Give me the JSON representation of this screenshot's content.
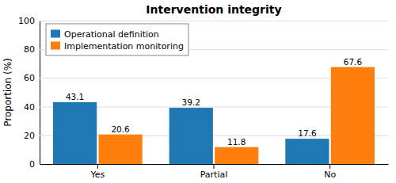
{
  "chart_data": {
    "type": "bar",
    "title": "Intervention integrity",
    "categories": [
      "Yes",
      "Partial",
      "No"
    ],
    "series": [
      {
        "name": "Operational definition",
        "values": [
          43.1,
          39.2,
          17.6
        ]
      },
      {
        "name": "Implementation monitoring",
        "values": [
          20.6,
          11.8,
          67.6
        ]
      }
    ],
    "ylabel": "Proportion (%)",
    "ylim": [
      0,
      100
    ],
    "yticks": [
      0,
      20,
      40,
      60,
      80,
      100
    ],
    "grid": true,
    "legend": "upper left",
    "data_labels": true
  }
}
